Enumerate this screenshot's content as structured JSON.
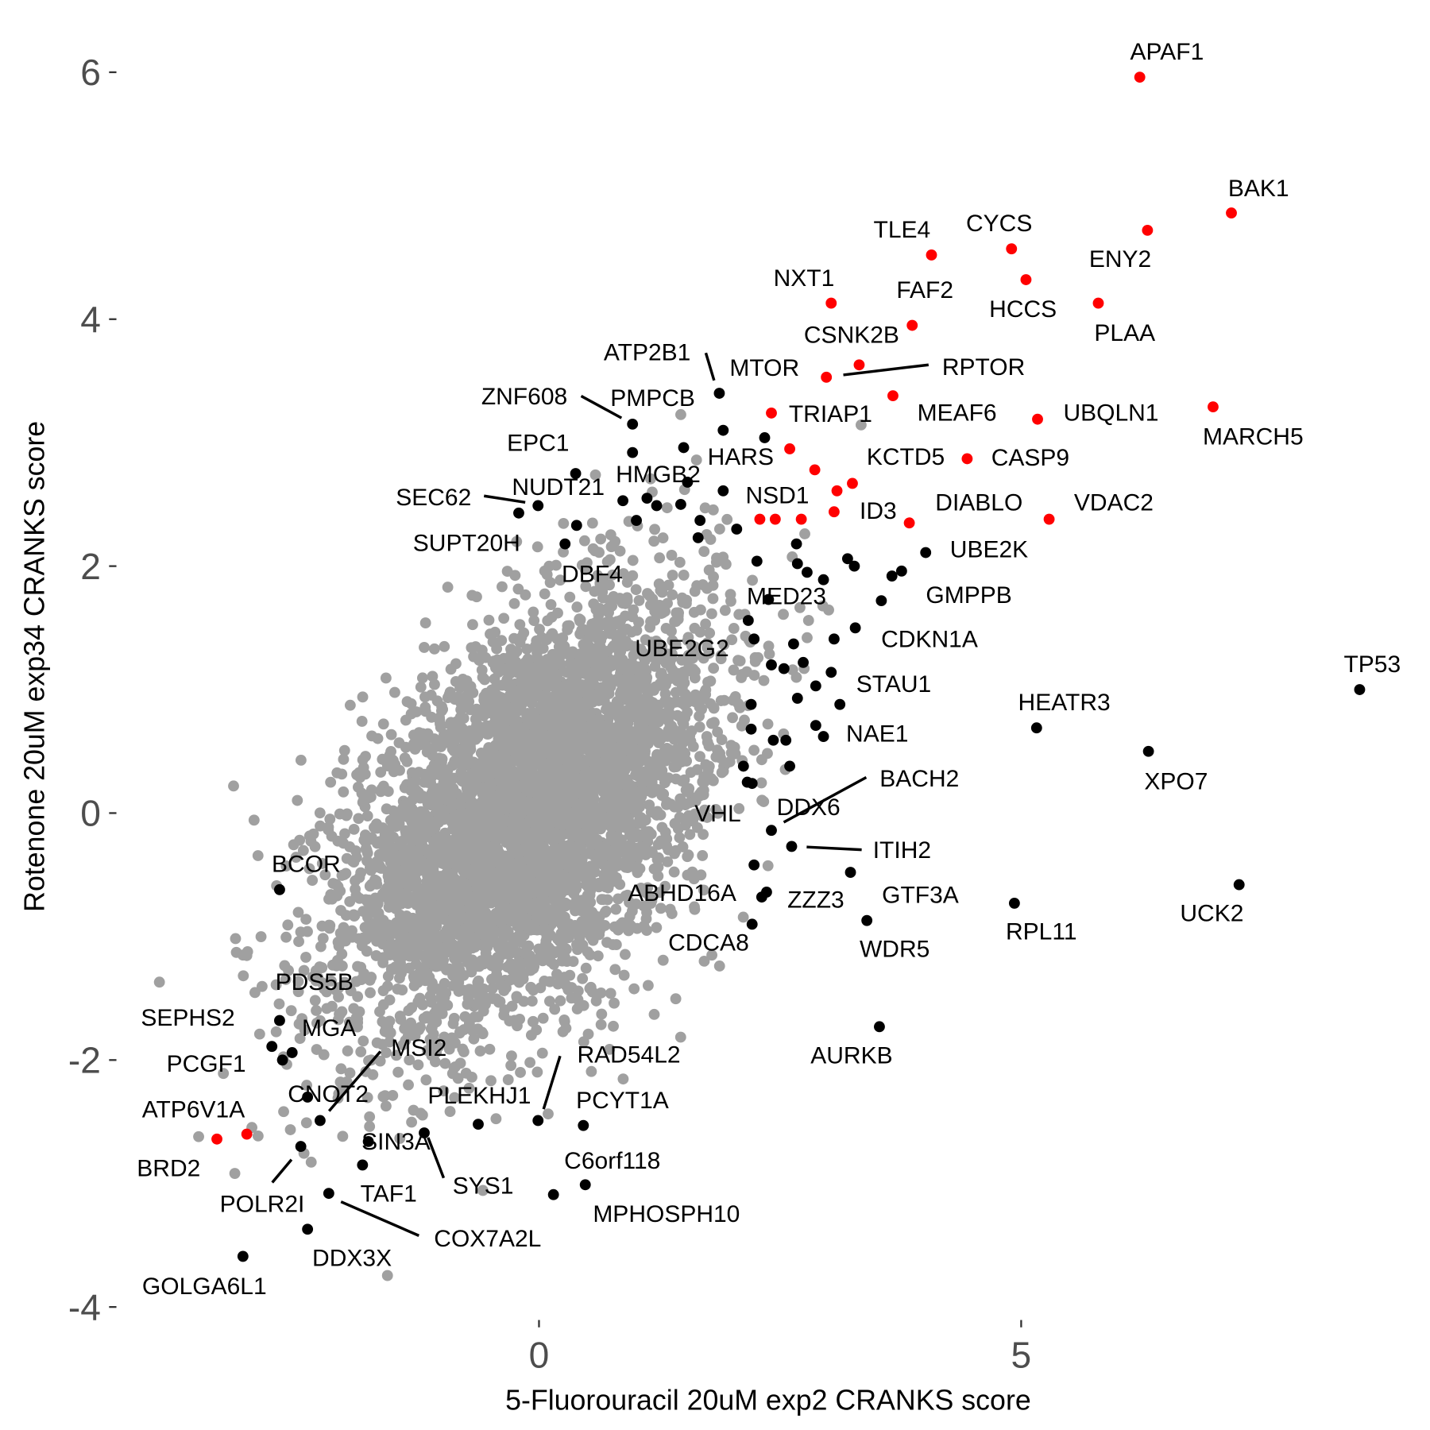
{
  "chart_data": {
    "type": "scatter",
    "title": "",
    "xlabel": "5-Fluorouracil 20uM exp2 CRANKS score",
    "ylabel": "Rotenone 20uM exp34 CRANKS score",
    "xlim": [
      -4.6,
      9.0
    ],
    "ylim": [
      -4.0,
      6.0
    ],
    "x_ticks": [
      0,
      5
    ],
    "y_ticks": [
      -4,
      -2,
      0,
      2,
      4,
      6
    ],
    "grid": false,
    "legend": "none",
    "colors": {
      "background": "#A0A0A0",
      "hit": "#000000",
      "highlight": "#FF0000"
    },
    "background_cloud": {
      "n": 5000,
      "mean": [
        -0.1,
        0.0
      ],
      "sd": [
        0.95,
        0.85
      ],
      "corr": 0.5,
      "color": "#A0A0A0"
    },
    "highlighted_points": [
      {
        "label": "APAF1",
        "x": 6.23,
        "y": 5.96
      },
      {
        "label": "BAK1",
        "x": 7.18,
        "y": 4.86
      },
      {
        "label": "ENY2",
        "x": 6.31,
        "y": 4.72
      },
      {
        "label": "TLE4",
        "x": 4.07,
        "y": 4.52
      },
      {
        "label": "CYCS",
        "x": 4.9,
        "y": 4.57
      },
      {
        "label": "HCCS",
        "x": 5.05,
        "y": 4.32
      },
      {
        "label": "NXT1",
        "x": 3.03,
        "y": 4.13
      },
      {
        "label": "PLAA",
        "x": 5.8,
        "y": 4.13
      },
      {
        "label": "FAF2",
        "x": 3.87,
        "y": 3.95
      },
      {
        "label": "CSNK2B",
        "x": 3.32,
        "y": 3.63
      },
      {
        "label": "RPTOR",
        "x": 2.98,
        "y": 3.53
      },
      {
        "label": "MEAF6",
        "x": 3.67,
        "y": 3.38
      },
      {
        "label": "MARCH5",
        "x": 6.99,
        "y": 3.29
      },
      {
        "label": "TRIAP1",
        "x": 2.41,
        "y": 3.24
      },
      {
        "label": "UBQLN1",
        "x": 5.17,
        "y": 3.19
      },
      {
        "label": "HARS",
        "x": 2.6,
        "y": 2.95
      },
      {
        "label": "CASP9",
        "x": 4.44,
        "y": 2.87
      },
      {
        "label": "KCTD5",
        "x": 3.25,
        "y": 2.67
      },
      {
        "label": "NSD1",
        "x": 2.29,
        "y": 2.38
      },
      {
        "label": "ID3",
        "x": 3.06,
        "y": 2.44
      },
      {
        "label": "DIABLO",
        "x": 3.84,
        "y": 2.35
      },
      {
        "label": "VDAC2",
        "x": 5.29,
        "y": 2.38
      },
      {
        "label": "ATP6V1A",
        "x": -3.03,
        "y": -2.6
      },
      {
        "label": "BRD2",
        "x": -3.34,
        "y": -2.64
      },
      {
        "label": "",
        "x": 2.86,
        "y": 2.78
      },
      {
        "label": "",
        "x": 3.09,
        "y": 2.61
      },
      {
        "label": "",
        "x": 2.45,
        "y": 2.38
      },
      {
        "label": "",
        "x": 2.72,
        "y": 2.38
      }
    ],
    "hit_points": [
      {
        "label": "TP53",
        "x": 8.51,
        "y": 1.0
      },
      {
        "label": "HEATR3",
        "x": 5.16,
        "y": 0.69
      },
      {
        "label": "XPO7",
        "x": 6.32,
        "y": 0.5
      },
      {
        "label": "UCK2",
        "x": 7.26,
        "y": -0.58
      },
      {
        "label": "RPL11",
        "x": 4.93,
        "y": -0.73
      },
      {
        "label": "AURKB",
        "x": 3.53,
        "y": -1.73
      },
      {
        "label": "WDR5",
        "x": 3.4,
        "y": -0.87
      },
      {
        "label": "GTF3A",
        "x": 3.23,
        "y": -0.48
      },
      {
        "label": "ITIH2",
        "x": 2.62,
        "y": -0.27
      },
      {
        "label": "BACH2",
        "x": 2.41,
        "y": -0.14
      },
      {
        "label": "DDX6",
        "x": 2.23,
        "y": -0.42
      },
      {
        "label": "VHL",
        "x": 2.21,
        "y": 0.24
      },
      {
        "label": "ABHD16A",
        "x": 2.31,
        "y": -0.68
      },
      {
        "label": "ZZZ3",
        "x": 2.36,
        "y": -0.64
      },
      {
        "label": "CDCA8",
        "x": 2.21,
        "y": -0.9
      },
      {
        "label": "UBE2K",
        "x": 4.01,
        "y": 2.11
      },
      {
        "label": "GMPPB",
        "x": 3.76,
        "y": 1.96
      },
      {
        "label": "CDKN1A",
        "x": 3.28,
        "y": 1.5
      },
      {
        "label": "STAU1",
        "x": 3.03,
        "y": 1.14
      },
      {
        "label": "NAE1",
        "x": 2.95,
        "y": 0.62
      },
      {
        "label": "MED23",
        "x": 2.38,
        "y": 1.73
      },
      {
        "label": "UBE2G2",
        "x": 2.23,
        "y": 1.41
      },
      {
        "label": "ATP2B1",
        "x": 1.87,
        "y": 3.4
      },
      {
        "label": "MTOR",
        "x": 1.91,
        "y": 3.1
      },
      {
        "label": "ZNF608",
        "x": 0.97,
        "y": 3.15
      },
      {
        "label": "PMPCB",
        "x": 0.97,
        "y": 2.92
      },
      {
        "label": "EPC1",
        "x": 0.38,
        "y": 2.75
      },
      {
        "label": "SEC62",
        "x": -0.21,
        "y": 2.43
      },
      {
        "label": "NUDT21",
        "x": -0.01,
        "y": 2.49
      },
      {
        "label": "HMGB2",
        "x": 0.87,
        "y": 2.53
      },
      {
        "label": "SUPT20H",
        "x": 0.39,
        "y": 2.33
      },
      {
        "label": "DBF4",
        "x": 0.27,
        "y": 2.18
      },
      {
        "label": "BCOR",
        "x": -2.69,
        "y": -0.62
      },
      {
        "label": "PDS5B",
        "x": -2.69,
        "y": -1.68
      },
      {
        "label": "SEPHS2",
        "x": -2.77,
        "y": -1.89
      },
      {
        "label": "MGA",
        "x": -2.56,
        "y": -1.94
      },
      {
        "label": "PCGF1",
        "x": -2.66,
        "y": -2.0
      },
      {
        "label": "MSI2",
        "x": -2.27,
        "y": -2.49
      },
      {
        "label": "CNOT2",
        "x": -2.4,
        "y": -2.3
      },
      {
        "label": "POLR2I",
        "x": -2.47,
        "y": -2.7
      },
      {
        "label": "SIN3A",
        "x": -1.77,
        "y": -2.66
      },
      {
        "label": "TAF1",
        "x": -1.83,
        "y": -2.85
      },
      {
        "label": "SYS1",
        "x": -1.19,
        "y": -2.59
      },
      {
        "label": "COX7A2L",
        "x": -2.18,
        "y": -3.08
      },
      {
        "label": "DDX3X",
        "x": -2.4,
        "y": -3.37
      },
      {
        "label": "GOLGA6L1",
        "x": -3.07,
        "y": -3.59
      },
      {
        "label": "PLEKHJ1",
        "x": -0.63,
        "y": -2.52
      },
      {
        "label": "RAD54L2",
        "x": -0.01,
        "y": -2.49
      },
      {
        "label": "PCYT1A",
        "x": 0.46,
        "y": -2.53
      },
      {
        "label": "C6orf118",
        "x": 0.48,
        "y": -3.01
      },
      {
        "label": "MPHOSPH10",
        "x": 0.15,
        "y": -3.09
      },
      {
        "label": "",
        "x": 1.5,
        "y": 2.96
      },
      {
        "label": "",
        "x": 2.34,
        "y": 3.04
      },
      {
        "label": "",
        "x": 1.91,
        "y": 2.61
      },
      {
        "label": "",
        "x": 1.54,
        "y": 2.68
      },
      {
        "label": "",
        "x": 1.12,
        "y": 2.55
      },
      {
        "label": "",
        "x": 1.22,
        "y": 2.49
      },
      {
        "label": "",
        "x": 1.47,
        "y": 2.5
      },
      {
        "label": "",
        "x": 1.01,
        "y": 2.37
      },
      {
        "label": "",
        "x": 1.67,
        "y": 2.37
      },
      {
        "label": "",
        "x": 1.65,
        "y": 2.23
      },
      {
        "label": "",
        "x": 2.05,
        "y": 2.3
      },
      {
        "label": "",
        "x": 2.26,
        "y": 2.04
      },
      {
        "label": "",
        "x": 2.67,
        "y": 2.18
      },
      {
        "label": "",
        "x": 2.68,
        "y": 2.02
      },
      {
        "label": "",
        "x": 2.78,
        "y": 1.95
      },
      {
        "label": "",
        "x": 2.95,
        "y": 1.89
      },
      {
        "label": "",
        "x": 3.2,
        "y": 2.06
      },
      {
        "label": "",
        "x": 3.27,
        "y": 2.0
      },
      {
        "label": "",
        "x": 3.66,
        "y": 1.92
      },
      {
        "label": "",
        "x": 3.55,
        "y": 1.72
      },
      {
        "label": "",
        "x": 2.17,
        "y": 1.56
      },
      {
        "label": "",
        "x": 2.64,
        "y": 1.37
      },
      {
        "label": "",
        "x": 3.06,
        "y": 1.41
      },
      {
        "label": "",
        "x": 2.41,
        "y": 1.2
      },
      {
        "label": "",
        "x": 2.54,
        "y": 1.17
      },
      {
        "label": "",
        "x": 2.74,
        "y": 1.22
      },
      {
        "label": "",
        "x": 2.87,
        "y": 1.03
      },
      {
        "label": "",
        "x": 2.68,
        "y": 0.93
      },
      {
        "label": "",
        "x": 3.12,
        "y": 0.88
      },
      {
        "label": "",
        "x": 2.87,
        "y": 0.71
      },
      {
        "label": "",
        "x": 2.2,
        "y": 0.88
      },
      {
        "label": "",
        "x": 2.2,
        "y": 0.68
      },
      {
        "label": "",
        "x": 2.43,
        "y": 0.59
      },
      {
        "label": "",
        "x": 2.56,
        "y": 0.59
      },
      {
        "label": "",
        "x": 2.6,
        "y": 0.38
      },
      {
        "label": "",
        "x": 2.12,
        "y": 0.38
      },
      {
        "label": "",
        "x": 2.16,
        "y": 0.25
      }
    ]
  }
}
